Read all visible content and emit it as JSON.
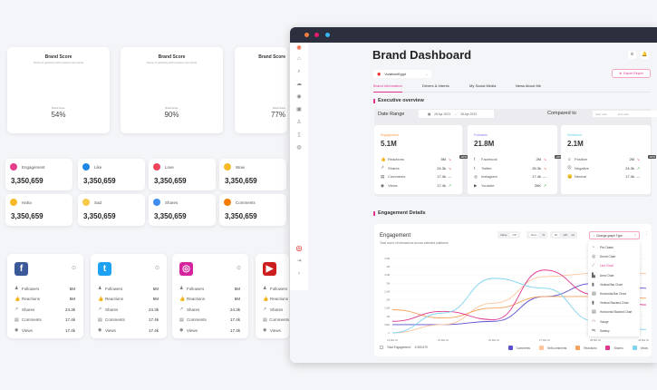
{
  "gauges": [
    {
      "title": "Brand Score",
      "subtitle": "Score of positivity with positive comments",
      "label": "Brand Score",
      "value": "54%",
      "pct": 54
    },
    {
      "title": "Brand Score",
      "subtitle": "Score of positivity with positive comments",
      "label": "Brand Score",
      "value": "90%",
      "pct": 90
    },
    {
      "title": "Brand Score",
      "subtitle": "Score of positivity with positive comments",
      "label": "Brand Score",
      "value": "77%",
      "pct": 77
    }
  ],
  "reaction_tiles": [
    {
      "label": "Engagement",
      "value": "3,350,659",
      "color": "#e83e8c"
    },
    {
      "label": "Like",
      "value": "3,350,659",
      "color": "#1e88e5"
    },
    {
      "label": "Love",
      "value": "3,350,659",
      "color": "#f0455c"
    },
    {
      "label": "Wow",
      "value": "3,350,659",
      "color": "#f7b928"
    },
    {
      "label": "Haha",
      "value": "3,350,659",
      "color": "#f7b928"
    },
    {
      "label": "Sad",
      "value": "3,350,659",
      "color": "#f7c948"
    },
    {
      "label": "Shares",
      "value": "3,350,659",
      "color": "#3d8ef0"
    },
    {
      "label": "Comments",
      "value": "3,350,659",
      "color": "#f57c00"
    }
  ],
  "social_cards": [
    {
      "platform": "Facebook",
      "glyph": "f",
      "color": "#3b5998",
      "rows": [
        {
          "label": "Followers",
          "value": "5M"
        },
        {
          "label": "Reactions",
          "value": "5M"
        },
        {
          "label": "Shares",
          "value": "24.3k"
        },
        {
          "label": "Comments",
          "value": "17.4k"
        },
        {
          "label": "Views",
          "value": "17.4k"
        }
      ]
    },
    {
      "platform": "Twitter",
      "glyph": "t",
      "color": "#1da1f2",
      "rows": [
        {
          "label": "Followers",
          "value": "5M"
        },
        {
          "label": "Reactions",
          "value": "5M"
        },
        {
          "label": "Shares",
          "value": "24.3k"
        },
        {
          "label": "Comments",
          "value": "17.4k"
        },
        {
          "label": "Views",
          "value": "17.4k"
        }
      ]
    },
    {
      "platform": "Instagram",
      "glyph": "◎",
      "color": "#d6249f",
      "rows": [
        {
          "label": "Followers",
          "value": "5M"
        },
        {
          "label": "Reactions",
          "value": "5M"
        },
        {
          "label": "Shares",
          "value": "24.3k"
        },
        {
          "label": "Comments",
          "value": "17.4k"
        },
        {
          "label": "Views",
          "value": "17.4k"
        }
      ]
    },
    {
      "platform": "Youtube",
      "glyph": "▶",
      "color": "#cc1e1e",
      "rows": [
        {
          "label": "Followers",
          "value": ""
        },
        {
          "label": "Reactions",
          "value": ""
        },
        {
          "label": "Shares",
          "value": ""
        },
        {
          "label": "Comments",
          "value": ""
        },
        {
          "label": "Views",
          "value": ""
        }
      ]
    }
  ],
  "dashboard": {
    "title": "Brand Dashboard",
    "brand_select": "VodafoneEgypt",
    "export_label": "Export Report",
    "tabs": [
      "Brand Information",
      "Drivers & Intents",
      "My Social Media",
      "News About Me"
    ],
    "active_tab": 0,
    "section1": "Executive overview",
    "date_range_label": "Date Range",
    "date_start": "28 Apr 2023",
    "date_end": "28 Apr 2023",
    "compared_label": "Compared to",
    "start_placeholder": "Start date",
    "end_placeholder": "End date",
    "stats": [
      {
        "key": "Engagement",
        "value": "5.1M",
        "color": "#f59a4a",
        "rows": [
          {
            "icon": "👍",
            "label": "Reactions",
            "value": "5M",
            "trend": "down"
          },
          {
            "icon": "↗",
            "label": "Shares",
            "value": "24.3k",
            "trend": "down"
          },
          {
            "icon": "▤",
            "label": "Comments",
            "value": "17.4k",
            "trend": "flat"
          },
          {
            "icon": "◉",
            "label": "Views",
            "value": "17.4k",
            "trend": "up"
          }
        ]
      },
      {
        "key": "Followers",
        "value": "21.8M",
        "color": "#8479e6",
        "rows": [
          {
            "icon": "f",
            "label": "Facebook",
            "value": "2M",
            "trend": "down"
          },
          {
            "icon": "t",
            "label": "Twitter",
            "value": "26.3k",
            "trend": "down"
          },
          {
            "icon": "◎",
            "label": "Instagram",
            "value": "17.4k",
            "trend": "flat"
          },
          {
            "icon": "▶",
            "label": "Youtube",
            "value": "26K",
            "trend": "up"
          }
        ]
      },
      {
        "key": "Sentiment",
        "value": "2.1M",
        "color": "#5ccfe0",
        "rows": [
          {
            "icon": "☺",
            "label": "Positive",
            "value": "2M",
            "trend": "down"
          },
          {
            "icon": "☹",
            "label": "Negative",
            "value": "24.3k",
            "trend": "up"
          },
          {
            "icon": "😐",
            "label": "Neutral",
            "value": "17.4k",
            "trend": "flat"
          }
        ]
      }
    ],
    "badge": "-20%",
    "section2": "Engagement Details",
    "chart_title": "Engagement",
    "chart_subtitle": "Total count of interactions across selected platforms",
    "value_toggle": [
      "Value",
      "Off"
    ],
    "num_toggle": [
      "Num",
      "%"
    ],
    "time_toggle": [
      "6h",
      "12h",
      "1d"
    ],
    "graph_type_label": "Change graph Type",
    "graph_menu": [
      "Pie Charts",
      "Donut Chart",
      "Line Chart",
      "Area Chart",
      "Vertical Bar Chart",
      "Horizontal Bar Chart",
      "Vertical Stacked Chart",
      "Horizontal Stacked Chart",
      "Gauge",
      "Sankey"
    ],
    "graph_menu_active": 2,
    "total_label": "Total Engagement:",
    "total_value": "5,350,679"
  },
  "chart_data": {
    "type": "line",
    "title": "Engagement",
    "x": [
      "24 Mar 22",
      "25 Mar 22",
      "26 Mar 22",
      "27 Mar 22",
      "28 Mar 22",
      "29 Mar 22"
    ],
    "yticks": [
      "0",
      "500k",
      "1M",
      "1.5M",
      "2M",
      "2.5M",
      "3M",
      "3.5M",
      "4M",
      "4.5M"
    ],
    "ylim": [
      0,
      4500000
    ],
    "series": [
      {
        "name": "Comments",
        "color": "#5a4fcf",
        "values": [
          500000,
          500000,
          700000,
          2200000,
          3000000,
          2700000
        ]
      },
      {
        "name": "Self-comments",
        "color": "#ffc49a",
        "values": [
          0,
          500000,
          1800000,
          3400000,
          3600000,
          3600000
        ]
      },
      {
        "name": "Reactions",
        "color": "#f5a35c",
        "values": [
          1400000,
          900000,
          1500000,
          2200000,
          2200000,
          2100000
        ]
      },
      {
        "name": "Shares",
        "color": "#e0368f",
        "values": [
          700000,
          1300000,
          800000,
          3800000,
          2300000,
          1700000
        ]
      },
      {
        "name": "Views",
        "color": "#7fd3ef",
        "values": [
          0,
          1200000,
          3300000,
          2700000,
          700000,
          200000
        ]
      }
    ]
  }
}
